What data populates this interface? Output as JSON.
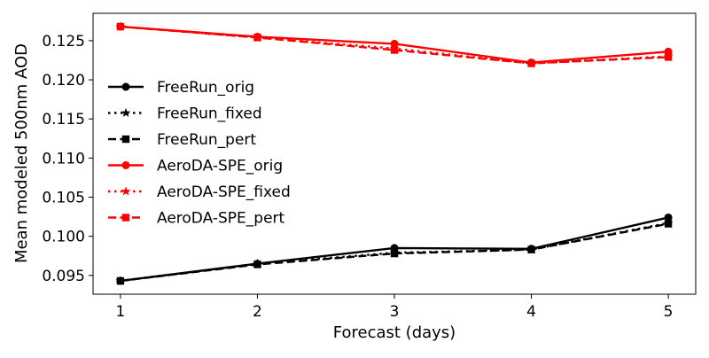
{
  "chart_data": {
    "type": "line",
    "xlabel": "Forecast (days)",
    "ylabel": "Mean modeled 500nm AOD",
    "x": [
      1,
      2,
      3,
      4,
      5
    ],
    "xticks": [
      "1",
      "2",
      "3",
      "4",
      "5"
    ],
    "xlim": [
      0.8,
      5.2
    ],
    "ylim": [
      0.0926,
      0.1285
    ],
    "yticks": [
      "0.095",
      "0.100",
      "0.105",
      "0.110",
      "0.115",
      "0.120",
      "0.125"
    ],
    "grid": false,
    "legend_position": "center-left",
    "series": [
      {
        "name": "FreeRun_orig",
        "values": [
          0.0943,
          0.0965,
          0.0985,
          0.0984,
          0.1024
        ],
        "color": "#000000",
        "linestyle": "solid",
        "marker": "circle"
      },
      {
        "name": "FreeRun_fixed",
        "values": [
          0.0943,
          0.0965,
          0.0979,
          0.0983,
          0.1017
        ],
        "color": "#000000",
        "linestyle": "dotted",
        "marker": "star"
      },
      {
        "name": "FreeRun_pert",
        "values": [
          0.0943,
          0.0964,
          0.0978,
          0.0983,
          0.1016
        ],
        "color": "#000000",
        "linestyle": "dashed",
        "marker": "square"
      },
      {
        "name": "AeroDA-SPE_orig",
        "values": [
          0.1268,
          0.1255,
          0.1246,
          0.1222,
          0.1236
        ],
        "color": "#ff0000",
        "linestyle": "solid",
        "marker": "circle"
      },
      {
        "name": "AeroDA-SPE_fixed",
        "values": [
          0.1268,
          0.1254,
          0.124,
          0.1221,
          0.123
        ],
        "color": "#ff0000",
        "linestyle": "dotted",
        "marker": "star"
      },
      {
        "name": "AeroDA-SPE_pert",
        "values": [
          0.1268,
          0.1254,
          0.1238,
          0.1221,
          0.1229
        ],
        "color": "#ff0000",
        "linestyle": "dashed",
        "marker": "square"
      }
    ]
  }
}
